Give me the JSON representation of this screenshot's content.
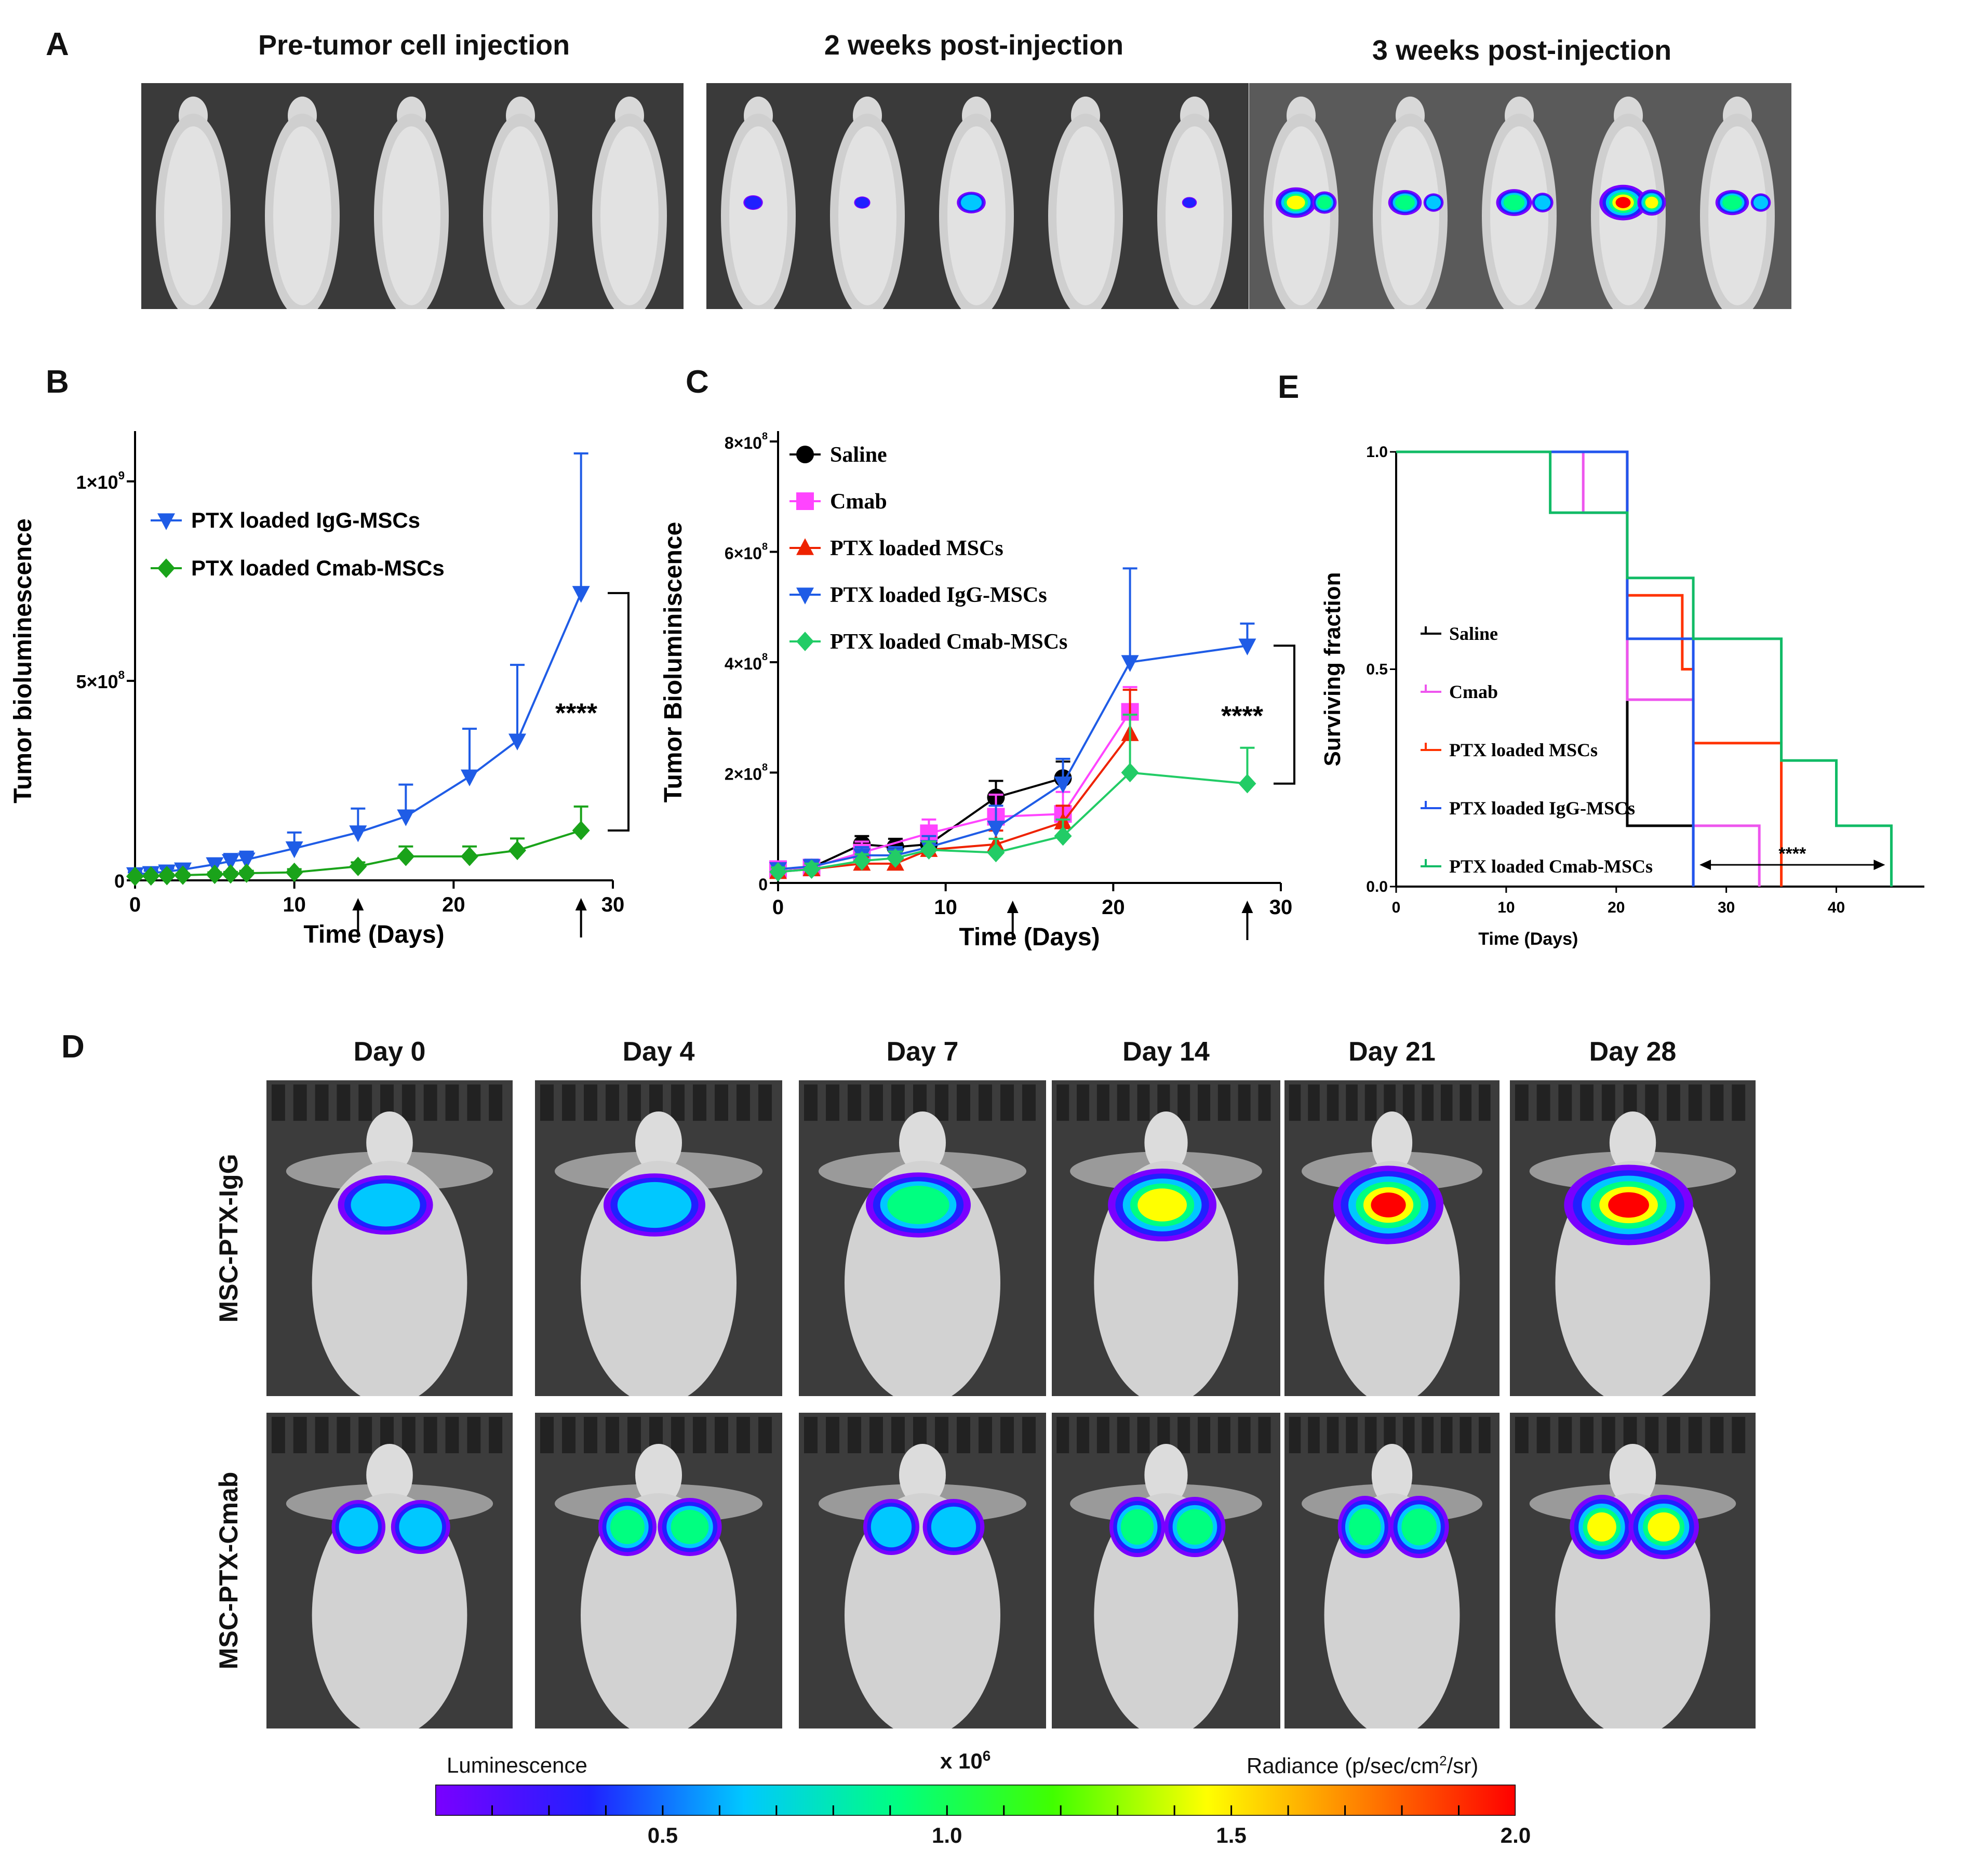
{
  "panels": {
    "A": {
      "letter": "A",
      "captions": [
        "Pre-tumor cell injection",
        "2 weeks post-injection",
        "3 weeks post-injection"
      ],
      "mice_per_image": 5,
      "signal": [
        [
          0,
          0,
          0,
          0,
          0
        ],
        [
          0.15,
          0.08,
          0.35,
          0,
          0.05
        ],
        [
          0.6,
          0.45,
          0.5,
          0.75,
          0.45
        ]
      ]
    },
    "B": {
      "letter": "B"
    },
    "C": {
      "letter": "C"
    },
    "D": {
      "letter": "D",
      "days": [
        "Day 0",
        "Day 4",
        "Day 7",
        "Day 14",
        "Day 21",
        "Day 28"
      ],
      "rows": [
        "MSC-PTX-IgG",
        "MSC-PTX-Cmab"
      ],
      "signal": [
        [
          0.45,
          0.55,
          0.6,
          0.8,
          0.95,
          1.0
        ],
        [
          0.5,
          0.6,
          0.55,
          0.65,
          0.7,
          0.75
        ]
      ]
    },
    "E": {
      "letter": "E"
    }
  },
  "colorbar": {
    "left_label": "Luminescence",
    "scale_label": "x 10",
    "scale_exp": "6",
    "right_label_pre": "Radiance (p/sec/cm",
    "right_label_sup": "2",
    "right_label_post": "/sr)",
    "min": 0.1,
    "max": 2.0,
    "ticks": [
      "0.5",
      "1.0",
      "1.5",
      "2.0"
    ],
    "tick_values": [
      0.5,
      1.0,
      1.5,
      2.0
    ],
    "colors": [
      "#7a00ff",
      "#2020ff",
      "#00c8ff",
      "#00ff80",
      "#40ff00",
      "#ffff00",
      "#ff8000",
      "#ff0000"
    ]
  },
  "chart_data": [
    {
      "id": "B",
      "type": "line",
      "xlabel": "Time (Days)",
      "ylabel": "Tumor bioluminescence",
      "xlim": [
        0,
        30
      ],
      "ylim": [
        0,
        1100000000
      ],
      "xticks": [
        0,
        10,
        20,
        30
      ],
      "yticks": [
        {
          "v": 0,
          "label": "0"
        },
        {
          "v": 500000000,
          "label": "5×10",
          "exp": "8"
        },
        {
          "v": 1000000000,
          "label": "1×10",
          "exp": "9"
        }
      ],
      "treatment_arrows": [
        14,
        28
      ],
      "significance": "****",
      "series": [
        {
          "name": "PTX loaded IgG-MSCs",
          "color": "#1f5ce6",
          "marker": "triangle-down",
          "x": [
            0,
            1,
            2,
            3,
            5,
            6,
            7,
            10,
            14,
            17,
            21,
            24,
            28
          ],
          "y": [
            15000000,
            18000000,
            22000000,
            27000000,
            40000000,
            48000000,
            52000000,
            80000000,
            120000000,
            160000000,
            260000000,
            350000000,
            720000000
          ],
          "err": [
            5000000,
            6000000,
            8000000,
            10000000,
            15000000,
            18000000,
            20000000,
            40000000,
            60000000,
            80000000,
            120000000,
            190000000,
            350000000
          ]
        },
        {
          "name": "PTX loaded Cmab-MSCs",
          "color": "#1aa31a",
          "marker": "diamond",
          "x": [
            0,
            1,
            2,
            3,
            5,
            6,
            7,
            10,
            14,
            17,
            21,
            24,
            28
          ],
          "y": [
            10000000,
            11000000,
            12000000,
            13000000,
            15000000,
            16000000,
            18000000,
            20000000,
            35000000,
            60000000,
            60000000,
            75000000,
            125000000
          ],
          "err": [
            3000000,
            3000000,
            4000000,
            4000000,
            5000000,
            5000000,
            6000000,
            8000000,
            10000000,
            25000000,
            25000000,
            30000000,
            60000000
          ]
        }
      ]
    },
    {
      "id": "C",
      "type": "line",
      "xlabel": "Time (Days)",
      "ylabel": "Tumor Bioluminiscence",
      "xlim": [
        0,
        30
      ],
      "ylim": [
        0,
        800000000
      ],
      "xticks": [
        0,
        10,
        20,
        30
      ],
      "yticks": [
        {
          "v": 0,
          "label": "0"
        },
        {
          "v": 200000000,
          "label": "2×10",
          "exp": "8"
        },
        {
          "v": 400000000,
          "label": "4×10",
          "exp": "8"
        },
        {
          "v": 600000000,
          "label": "6×10",
          "exp": "8"
        },
        {
          "v": 800000000,
          "label": "8×10",
          "exp": "8"
        }
      ],
      "treatment_arrows": [
        14,
        28
      ],
      "significance": "****",
      "series": [
        {
          "name": "Saline",
          "color": "#000000",
          "marker": "circle",
          "x": [
            0,
            2,
            5,
            7,
            9,
            13,
            17
          ],
          "y": [
            25000000,
            28000000,
            70000000,
            65000000,
            70000000,
            155000000,
            190000000
          ],
          "err": [
            10000000,
            12000000,
            15000000,
            15000000,
            15000000,
            30000000,
            30000000
          ]
        },
        {
          "name": "Cmab",
          "color": "#ff44ff",
          "marker": "square",
          "x": [
            0,
            2,
            5,
            9,
            13,
            17,
            21
          ],
          "y": [
            25000000,
            28000000,
            55000000,
            90000000,
            120000000,
            125000000,
            310000000
          ],
          "err": [
            10000000,
            12000000,
            20000000,
            25000000,
            40000000,
            40000000,
            45000000
          ]
        },
        {
          "name": "PTX loaded MSCs",
          "color": "#ee2200",
          "marker": "triangle-up",
          "x": [
            0,
            2,
            5,
            7,
            9,
            13,
            17,
            21
          ],
          "y": [
            20000000,
            25000000,
            35000000,
            35000000,
            60000000,
            70000000,
            110000000,
            270000000
          ],
          "err": [
            8000000,
            10000000,
            12000000,
            12000000,
            15000000,
            25000000,
            30000000,
            80000000
          ]
        },
        {
          "name": "PTX loaded IgG-MSCs",
          "color": "#1f5ce6",
          "marker": "triangle-down",
          "x": [
            0,
            2,
            5,
            7,
            9,
            13,
            17,
            21,
            28
          ],
          "y": [
            25000000,
            30000000,
            50000000,
            50000000,
            65000000,
            100000000,
            180000000,
            400000000,
            430000000
          ],
          "err": [
            10000000,
            12000000,
            15000000,
            15000000,
            20000000,
            40000000,
            45000000,
            170000000,
            40000000
          ]
        },
        {
          "name": "PTX loaded Cmab-MSCs",
          "color": "#22cc66",
          "marker": "diamond",
          "x": [
            0,
            2,
            5,
            7,
            9,
            13,
            17,
            21,
            28
          ],
          "y": [
            20000000,
            25000000,
            40000000,
            45000000,
            60000000,
            55000000,
            85000000,
            200000000,
            180000000
          ],
          "err": [
            8000000,
            10000000,
            12000000,
            12000000,
            15000000,
            25000000,
            30000000,
            105000000,
            65000000
          ]
        }
      ]
    },
    {
      "id": "E",
      "type": "line",
      "step": true,
      "xlabel": "Time (Days)",
      "ylabel": "Surviving fraction",
      "xlim": [
        0,
        48
      ],
      "ylim": [
        0,
        1
      ],
      "xticks": [
        0,
        10,
        20,
        30,
        40
      ],
      "yticks": [
        {
          "v": 0,
          "label": "0.0"
        },
        {
          "v": 0.5,
          "label": "0.5"
        },
        {
          "v": 1.0,
          "label": "1.0"
        }
      ],
      "significance": "****",
      "significance_range": [
        27,
        45
      ],
      "series": [
        {
          "name": "Saline",
          "color": "#000000",
          "x": [
            0,
            21,
            27
          ],
          "y": [
            1.0,
            0.14,
            0.0
          ]
        },
        {
          "name": "Cmab",
          "color": "#ee55ee",
          "x": [
            0,
            17,
            21,
            27,
            33
          ],
          "y": [
            1.0,
            0.86,
            0.43,
            0.14,
            0.0
          ]
        },
        {
          "name": "PTX loaded MSCs",
          "color": "#ff3300",
          "x": [
            0,
            21,
            26,
            27,
            35
          ],
          "y": [
            1.0,
            0.67,
            0.5,
            0.33,
            0.0
          ]
        },
        {
          "name": "PTX loaded IgG-MSCs",
          "color": "#2255ee",
          "x": [
            0,
            21,
            27
          ],
          "y": [
            1.0,
            0.57,
            0.0
          ]
        },
        {
          "name": "PTX loaded Cmab-MSCs",
          "color": "#11bb66",
          "x": [
            0,
            14,
            21,
            27,
            35,
            40,
            45
          ],
          "y": [
            1.0,
            0.86,
            0.71,
            0.57,
            0.29,
            0.14,
            0.0
          ]
        }
      ]
    }
  ]
}
